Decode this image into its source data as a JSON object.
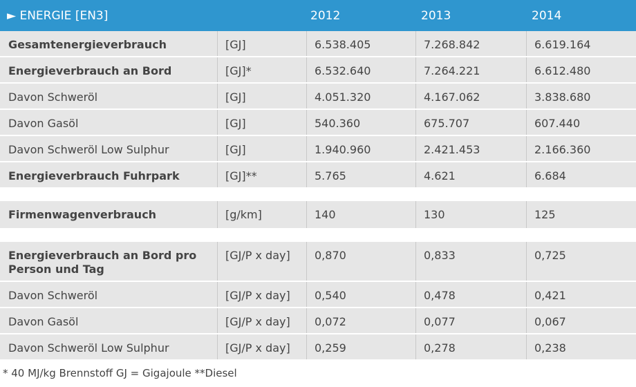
{
  "header": {
    "title": "► ENERGIE  [EN3]",
    "years": [
      "2012",
      "2013",
      "2014"
    ]
  },
  "rows": [
    {
      "label": "Gesamtenergieverbrauch",
      "unit": "[GJ]",
      "values": [
        "6.538.405",
        "7.268.842",
        "6.619.164"
      ]
    },
    {
      "label": "Energieverbrauch an Bord",
      "unit": "[GJ]*",
      "values": [
        "6.532.640",
        "7.264.221",
        "6.612.480"
      ]
    },
    {
      "label": "Davon Schweröl",
      "unit": "[GJ]",
      "values": [
        "4.051.320",
        "4.167.062",
        "3.838.680"
      ]
    },
    {
      "label": "Davon Gasöl",
      "unit": "[GJ]",
      "values": [
        "540.360",
        "675.707",
        "607.440"
      ]
    },
    {
      "label": "Davon Schweröl Low Sulphur",
      "unit": "[GJ]",
      "values": [
        "1.940.960",
        "2.421.453",
        "2.166.360"
      ]
    },
    {
      "label": "Energieverbrauch Fuhrpark",
      "unit": "[GJ]**",
      "values": [
        "5.765",
        "4.621",
        "6.684"
      ]
    },
    {
      "label": "Firmenwagenverbrauch",
      "unit": "[g/km]",
      "values": [
        "140",
        "130",
        "125"
      ]
    },
    {
      "label": "Energieverbrauch an Bord pro\nPerson und Tag",
      "unit": "[GJ/P x day]",
      "values": [
        "0,870",
        "0,833",
        "0,725"
      ]
    },
    {
      "label": "Davon Schweröl",
      "unit": "[GJ/P x day]",
      "values": [
        "0,540",
        "0,478",
        "0,421"
      ]
    },
    {
      "label": "Davon Gasöl",
      "unit": "[GJ/P x day]",
      "values": [
        "0,072",
        "0,077",
        "0,067"
      ]
    },
    {
      "label": "Davon Schweröl Low Sulphur",
      "unit": "[GJ/P x day]",
      "values": [
        "0,259",
        "0,278",
        "0,238"
      ]
    }
  ],
  "footnote": "* 40 MJ/kg Brennstoff GJ = Gigajoule **Diesel",
  "colors": {
    "header_bg": "#2f96cf",
    "row_bg": "#e6e6e6",
    "text": "#444444"
  }
}
